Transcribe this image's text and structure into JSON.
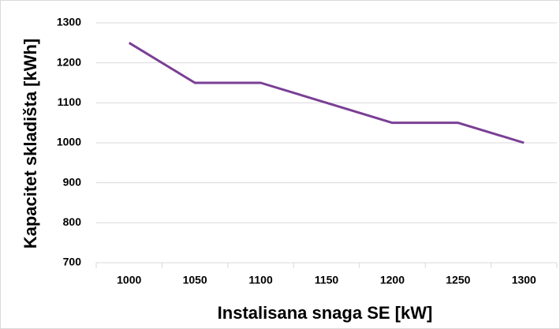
{
  "chart_data": {
    "type": "line",
    "x_label": "Instalisana snaga SE [kW]",
    "y_label": "Kapacitet skladišta [kWh]",
    "categories": [
      1000,
      1050,
      1100,
      1150,
      1200,
      1250,
      1300
    ],
    "values": [
      1250,
      1150,
      1150,
      1100,
      1050,
      1050,
      1000
    ],
    "color": "#7a3f95",
    "ylim": [
      700,
      1300
    ],
    "yticks": [
      700,
      800,
      900,
      1000,
      1100,
      1200,
      1300
    ],
    "grid": true
  }
}
